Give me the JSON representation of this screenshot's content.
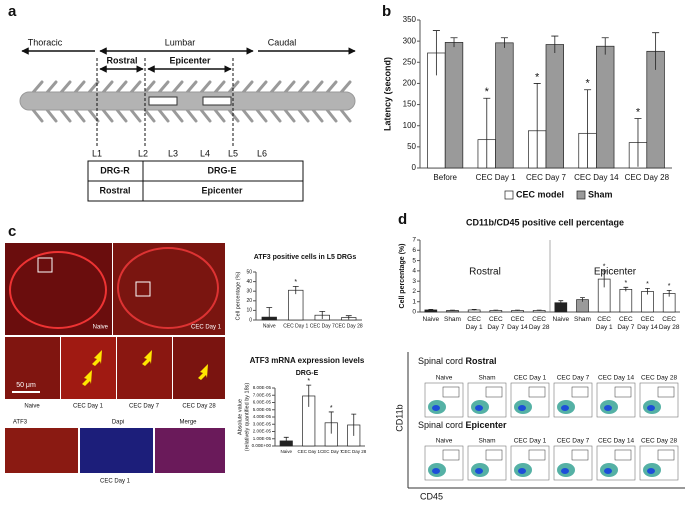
{
  "panel_labels": [
    "a",
    "b",
    "c",
    "d"
  ],
  "diagram": {
    "regions": [
      "Thoracic",
      "Lumbar",
      "Caudal"
    ],
    "subregions": [
      "Rostral",
      "Epicenter"
    ],
    "levels": [
      "L1",
      "L2",
      "L3",
      "L4",
      "L5",
      "L6"
    ],
    "table": [
      [
        "DRG-R",
        "DRG-E"
      ],
      [
        "Rostral",
        "Epicenter"
      ]
    ]
  },
  "micrographs": {
    "top": [
      "Naive",
      "CEC Day 1"
    ],
    "middle": [
      "Naive",
      "CEC Day 1",
      "CEC Day 7",
      "CEC Day 28"
    ],
    "scale_bar": "50 μm",
    "channels": [
      "ATF3",
      "Dapi",
      "Merge"
    ],
    "channel_caption": "CEC Day 1"
  },
  "flow": {
    "row_prefix": "Spinal cord",
    "rows": [
      "Rostral",
      "Epicenter"
    ],
    "columns": [
      "Naive",
      "Sham",
      "CEC Day 1",
      "CEC Day 7",
      "CEC Day 14",
      "CEC Day 28"
    ],
    "y_label": "CD11b",
    "x_label": "CD45"
  },
  "chart_data": [
    {
      "type": "bar",
      "y_label": "Latency (second)",
      "categories": [
        "Before",
        "CEC Day 1",
        "CEC Day 7",
        "CEC Day 14",
        "CEC Day 28"
      ],
      "series": [
        {
          "name": "CEC model",
          "color": "#ffffff",
          "values": [
            272,
            67,
            88,
            82,
            60
          ],
          "errors": [
            53,
            98,
            112,
            103,
            57
          ],
          "annotations": [
            null,
            "*",
            "*",
            "*",
            "*"
          ]
        },
        {
          "name": "Sham",
          "color": "#9a9a9a",
          "values": [
            297,
            296,
            292,
            288,
            276
          ],
          "errors": [
            11,
            12,
            20,
            20,
            44
          ]
        }
      ],
      "ylim": [
        0,
        350
      ],
      "yticks": [
        0,
        50,
        100,
        150,
        200,
        250,
        300,
        350
      ],
      "legend": "bottom"
    },
    {
      "type": "bar",
      "title": "ATF3 positive cells in L5 DRGs",
      "y_label": "Cell percentage (%)",
      "categories": [
        "Naive",
        "CEC Day 1",
        "CEC Day 7",
        "CEC Day 28"
      ],
      "series": [
        {
          "colors": [
            "#222222",
            "#ffffff",
            "#ffffff",
            "#ffffff"
          ],
          "values": [
            3,
            31,
            5,
            2.5
          ],
          "errors": [
            10,
            4,
            4,
            2
          ],
          "annotations": [
            null,
            "*",
            null,
            null
          ]
        }
      ],
      "ylim": [
        0,
        50
      ],
      "yticks": [
        0,
        10,
        20,
        30,
        40,
        50
      ]
    },
    {
      "type": "bar",
      "title": "ATF3 mRNA expression levels",
      "subtitle": "DRG-E",
      "y_label": [
        "Absolute value",
        "(relatively quantified by 18s)"
      ],
      "categories": [
        "Naive",
        "CEC Day 1",
        "CEC Day 7",
        "CEC Day 28"
      ],
      "series": [
        {
          "colors": [
            "#222222",
            "#ffffff",
            "#ffffff",
            "#ffffff"
          ],
          "values": [
            7e-06,
            6.9e-05,
            3.2e-05,
            2.9e-05
          ],
          "errors": [
            5e-06,
            1.5e-05,
            1.5e-05,
            1.5e-05
          ],
          "annotations": [
            null,
            "*",
            "*",
            null
          ]
        }
      ],
      "ylim": [
        0,
        8e-05
      ],
      "yticks": [
        {
          "value": 0,
          "label": "0.00E+00"
        },
        {
          "value": 1e-05,
          "label": "1.00E-05"
        },
        {
          "value": 2e-05,
          "label": "2.00E-05"
        },
        {
          "value": 3e-05,
          "label": "3.00E-05"
        },
        {
          "value": 4e-05,
          "label": "4.00E-05"
        },
        {
          "value": 5e-05,
          "label": "5.00E-05"
        },
        {
          "value": 6e-05,
          "label": "6.00E-05"
        },
        {
          "value": 7e-05,
          "label": "7.00E-05"
        },
        {
          "value": 8e-05,
          "label": "8.00E-05"
        }
      ]
    },
    {
      "type": "bar",
      "title": "CD11b/CD45 positive cell percentage",
      "y_label": "Cell percentage (%)",
      "groups": [
        "Rostral",
        "Epicenter"
      ],
      "categories": [
        "Naive",
        "Sham",
        "CEC Day 1",
        "CEC Day 7",
        "CEC Day 14",
        "CEC Day 28",
        "Naive",
        "Sham",
        "CEC Day 1",
        "CEC Day 7",
        "CEC Day 14",
        "CEC Day 28"
      ],
      "series": [
        {
          "colors": [
            "#222222",
            "#9a9a9a",
            "#ffffff",
            "#ffffff",
            "#ffffff",
            "#ffffff",
            "#222222",
            "#9a9a9a",
            "#ffffff",
            "#ffffff",
            "#ffffff",
            "#ffffff"
          ],
          "values": [
            0.2,
            0.15,
            0.2,
            0.15,
            0.15,
            0.15,
            0.9,
            1.2,
            3.2,
            2.2,
            2.0,
            1.8
          ],
          "errors": [
            0.05,
            0.03,
            0.05,
            0.03,
            0.03,
            0.03,
            0.2,
            0.2,
            0.8,
            0.2,
            0.3,
            0.3
          ],
          "annotations": [
            null,
            null,
            null,
            null,
            null,
            null,
            null,
            null,
            "*",
            "*",
            "*",
            "*"
          ]
        }
      ],
      "ylim": [
        0,
        7
      ],
      "yticks": [
        0,
        1,
        2,
        3,
        4,
        5,
        6,
        7
      ]
    }
  ]
}
